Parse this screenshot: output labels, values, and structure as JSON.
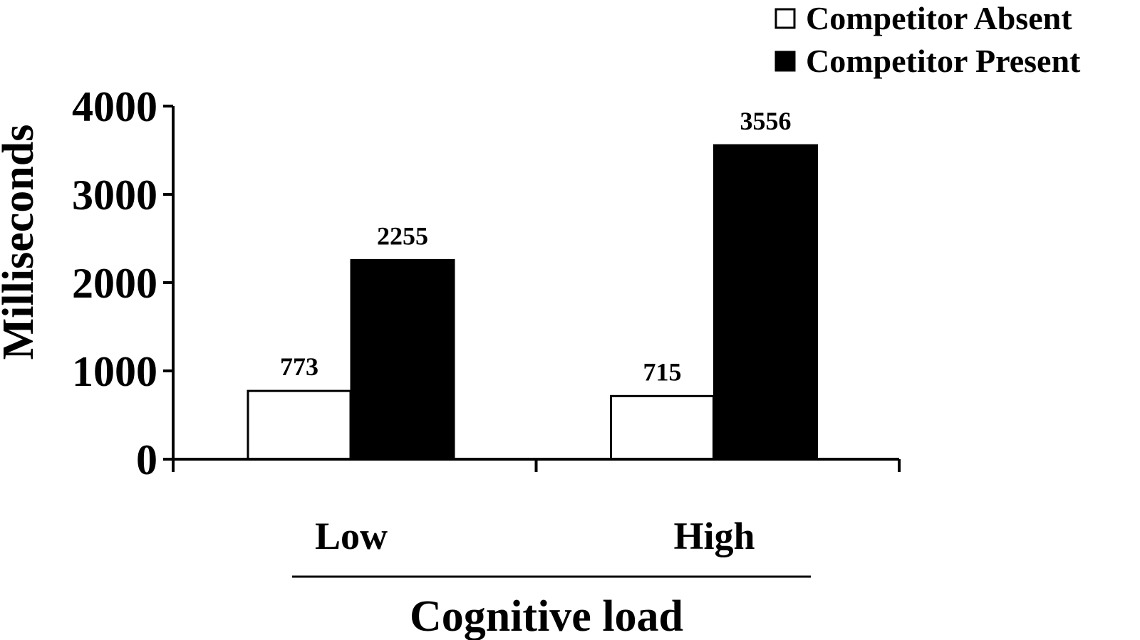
{
  "chart_data": {
    "type": "bar",
    "categories": [
      "Low",
      "High"
    ],
    "series": [
      {
        "name": "Competitor Absent",
        "values": [
          773,
          715
        ],
        "color": "#ffffff"
      },
      {
        "name": "Competitor Present",
        "values": [
          2255,
          3556
        ],
        "color": "#000000"
      }
    ],
    "xlabel": "Cognitive load",
    "ylabel": "Milliseconds",
    "ylim": [
      0,
      4000
    ],
    "yticks": [
      0,
      1000,
      2000,
      3000,
      4000
    ],
    "grid": false,
    "legend_position": "top-right",
    "data_labels": [
      [
        "773",
        "2255"
      ],
      [
        "715",
        "3556"
      ]
    ]
  }
}
